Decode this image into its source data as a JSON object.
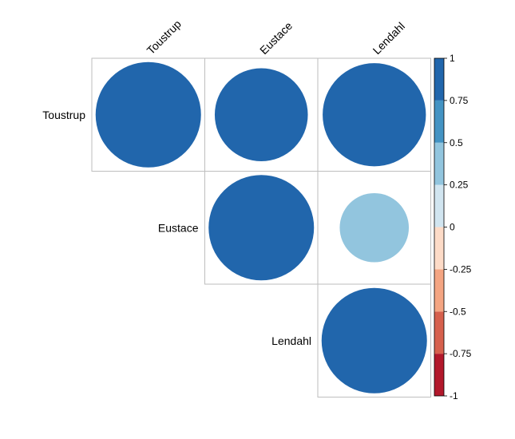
{
  "chart_data": {
    "type": "heatmap",
    "subtype": "correlation-circles-upper-triangle",
    "variables": [
      "Toustrup",
      "Eustace",
      "Lendahl"
    ],
    "matrix": [
      [
        1.0,
        0.78,
        0.96
      ],
      [
        0.78,
        1.0,
        0.43
      ],
      [
        0.96,
        0.43,
        1.0
      ]
    ],
    "colorbar": {
      "range": [
        -1,
        1
      ],
      "tick_labels": [
        "-1",
        "-0.75",
        "-0.5",
        "-0.25",
        "0",
        "0.25",
        "0.5",
        "0.75",
        "1"
      ],
      "tick_values": [
        -1,
        -0.75,
        -0.5,
        -0.25,
        0,
        0.25,
        0.5,
        0.75,
        1
      ],
      "bands": [
        {
          "from": -1.0,
          "to": -0.75,
          "color": "#B2182B"
        },
        {
          "from": -0.75,
          "to": -0.5,
          "color": "#D6604D"
        },
        {
          "from": -0.5,
          "to": -0.25,
          "color": "#F4A582"
        },
        {
          "from": -0.25,
          "to": 0.0,
          "color": "#FDDBC7"
        },
        {
          "from": 0.0,
          "to": 0.25,
          "color": "#D1E5F0"
        },
        {
          "from": 0.25,
          "to": 0.5,
          "color": "#92C5DE"
        },
        {
          "from": 0.5,
          "to": 0.75,
          "color": "#4393C3"
        },
        {
          "from": 0.75,
          "to": 1.0,
          "color": "#2166AC"
        }
      ]
    },
    "grid_color": "#BEBEBE"
  }
}
